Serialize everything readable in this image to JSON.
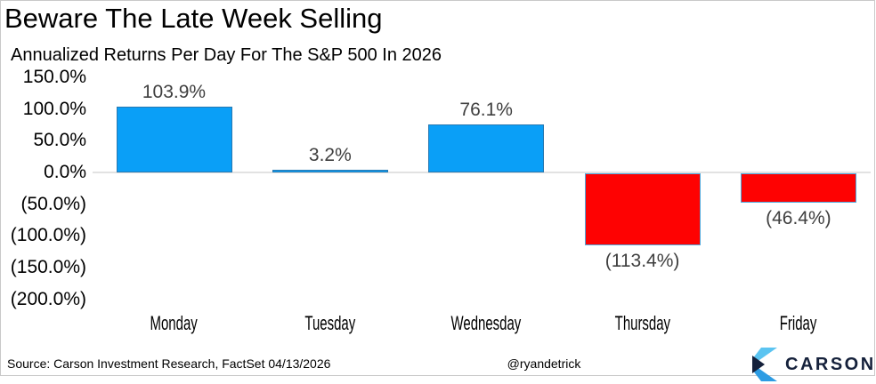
{
  "title": "Beware The Late Week Selling",
  "subtitle": "Annualized Returns Per Day For The S&P 500 In 2026",
  "chart_data": {
    "type": "bar",
    "title": "Beware The Late Week Selling",
    "subtitle": "Annualized Returns Per Day For The S&P 500 In 2026",
    "categories": [
      "Monday",
      "Tuesday",
      "Wednesday",
      "Thursday",
      "Friday"
    ],
    "values": [
      103.9,
      3.2,
      76.1,
      -113.4,
      -46.4
    ],
    "value_labels": [
      "103.9%",
      "3.2%",
      "76.1%",
      "(113.4%)",
      "(46.4%)"
    ],
    "ylim": [
      -200,
      150
    ],
    "y_ticks": [
      {
        "value": 150,
        "label": "150.0%"
      },
      {
        "value": 100,
        "label": "100.0%"
      },
      {
        "value": 50,
        "label": "50.0%"
      },
      {
        "value": 0,
        "label": "0.0%"
      },
      {
        "value": -50,
        "label": "(50.0%)"
      },
      {
        "value": -100,
        "label": "(100.0%)"
      },
      {
        "value": -150,
        "label": "(150.0%)"
      },
      {
        "value": -200,
        "label": "(200.0%)"
      }
    ],
    "grid": "zero-line-only",
    "legend": "none",
    "positive_color": "#0a9ff7",
    "negative_color": "#fe0202",
    "positive_border": "#2878b0",
    "negative_border": "#4fa8dc",
    "zero_line_color": "#e2e2e2",
    "value_label_color": "#3f3f3f"
  },
  "footer": {
    "source": "Source: Carson Investment Research, FactSet 04/13/2026",
    "handle": "@ryandetrick",
    "logo_text": "CARSON",
    "logo_navy": "#15213b",
    "logo_light_blue": "#5bc4f1",
    "logo_mid_blue": "#2d9ce3"
  }
}
